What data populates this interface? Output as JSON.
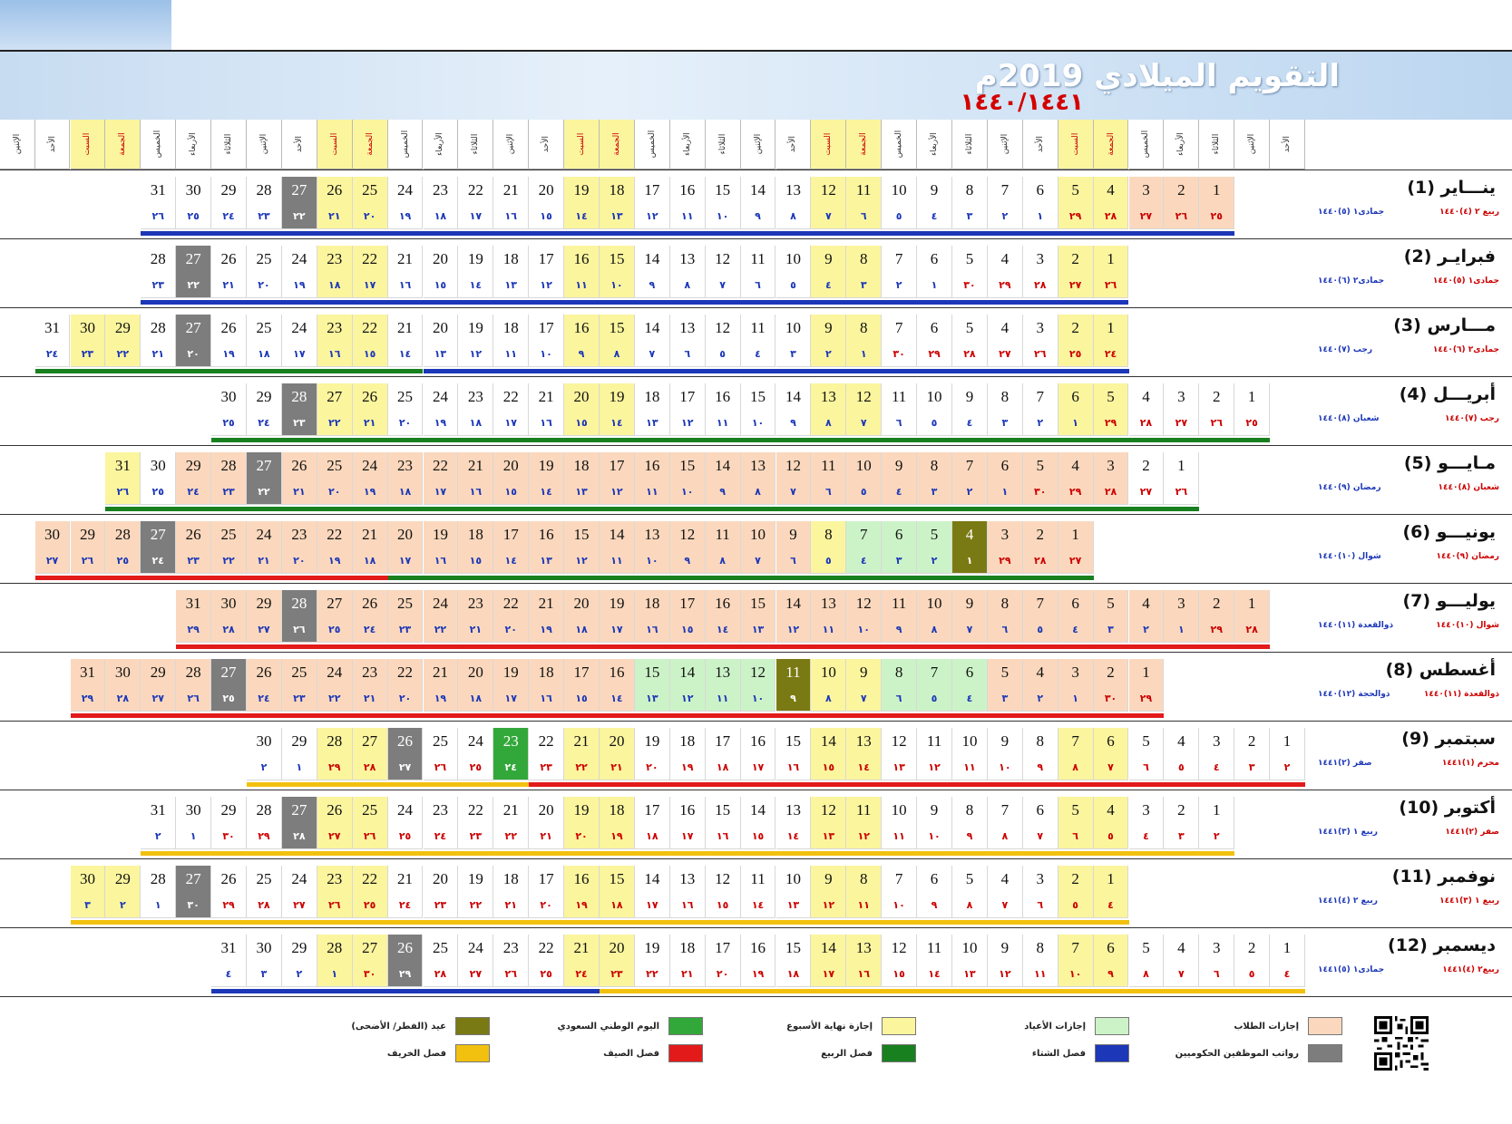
{
  "title": "التقويم الميلادي 2019م",
  "hijri_years": "١٤٤٠/١٤٤١",
  "weekday_headers": [
    "الأحد",
    "الإثنين",
    "الثلاثاء",
    "الأربعاء",
    "الخميس",
    "الجمعة",
    "السبت"
  ],
  "colors": {
    "weekend": "#fbf59e",
    "student": "#fbd8bd",
    "eid_holiday": "#ccf3c8",
    "national_day": "#33a83a",
    "eid_day": "#7a7a14",
    "salary": "#7d7d7d",
    "winter": "#1c37b8",
    "spring": "#18801f",
    "summer": "#e31a1a",
    "autumn": "#f2c10f"
  },
  "months": [
    {
      "label": "ينـــاير (1)",
      "hijri_a": "ربيع ٢ (٤)١٤٤٠",
      "hijri_b": "جمادى١ (٥)١٤٤٠",
      "start": 2,
      "days": 31,
      "h_start": 25,
      "h_len": 29,
      "h_next": 1
    },
    {
      "label": "فبرايـر (2)",
      "hijri_a": "جمادى١ (٥)١٤٤٠",
      "hijri_b": "جمادى٢ (٦)١٤٤٠",
      "start": 5,
      "days": 28,
      "h_start": 26,
      "h_len": 30,
      "h_next": 1
    },
    {
      "label": "مـــارس (3)",
      "hijri_a": "جمادى٢ (٦)١٤٤٠",
      "hijri_b": "رجب (٧)١٤٤٠",
      "start": 5,
      "days": 31,
      "h_start": 24,
      "h_len": 30,
      "h_next": 1
    },
    {
      "label": "أبريـــل (4)",
      "hijri_a": "رجب (٧)١٤٤٠",
      "hijri_b": "شعبان (٨)١٤٤٠",
      "start": 1,
      "days": 30,
      "h_start": 25,
      "h_len": 29,
      "h_next": 1
    },
    {
      "label": "مـايـــو (5)",
      "hijri_a": "شعبان (٨)١٤٤٠",
      "hijri_b": "رمضان (٩)١٤٤٠",
      "start": 3,
      "days": 31,
      "h_start": 26,
      "h_len": 30,
      "h_next": 1
    },
    {
      "label": "يونيـــو (6)",
      "hijri_a": "رمضان (٩)١٤٤٠",
      "hijri_b": "شوال (١٠)١٤٤٠",
      "start": 6,
      "days": 30,
      "h_start": 27,
      "h_len": 29,
      "h_next": 1
    },
    {
      "label": "يوليـــو (7)",
      "hijri_a": "شوال (١٠)١٤٤٠",
      "hijri_b": "ذوالقعدة (١١)١٤٤٠",
      "start": 1,
      "days": 31,
      "h_start": 28,
      "h_len": 29,
      "h_next": 1
    },
    {
      "label": "أغسطس (8)",
      "hijri_a": "ذوالقعدة (١١)١٤٤٠",
      "hijri_b": "ذوالحجة (١٢)١٤٤٠",
      "start": 4,
      "days": 31,
      "h_start": 29,
      "h_len": 30,
      "h_next": 1
    },
    {
      "label": "سبتمبر (9)",
      "hijri_a": "محرم (١)١٤٤١",
      "hijri_b": "صفر (٢)١٤٤١",
      "start": 0,
      "days": 30,
      "h_start": 2,
      "h_len": 29,
      "h_next": 1
    },
    {
      "label": "أكتوبر (10)",
      "hijri_a": "صفر (٢)١٤٤١",
      "hijri_b": "ربيع ١ (٣)١٤٤١",
      "start": 2,
      "days": 31,
      "h_start": 2,
      "h_len": 30,
      "h_next": 1
    },
    {
      "label": "نوفمبر (11)",
      "hijri_a": "ربيع ١ (٣)١٤٤١",
      "hijri_b": "ربيع ٢ (٤)١٤٤١",
      "start": 5,
      "days": 30,
      "h_start": 4,
      "h_len": 30,
      "h_next": 1
    },
    {
      "label": "ديسمبر (12)",
      "hijri_a": "ربيع٢ (٤)١٤٤١",
      "hijri_b": "جمادى١ (٥)١٤٤١",
      "start": 0,
      "days": 31,
      "h_start": 4,
      "h_len": 30,
      "h_next": 1
    }
  ],
  "special_days": {
    "student": [
      [
        1,
        1
      ],
      [
        1,
        2
      ],
      [
        1,
        3
      ],
      [
        5,
        3
      ],
      [
        5,
        4
      ],
      [
        5,
        5
      ],
      [
        5,
        6
      ],
      [
        5,
        7
      ],
      [
        5,
        8
      ],
      [
        5,
        9
      ],
      [
        5,
        10
      ],
      [
        5,
        11
      ],
      [
        5,
        12
      ],
      [
        5,
        13
      ],
      [
        5,
        14
      ],
      [
        5,
        15
      ],
      [
        5,
        16
      ],
      [
        5,
        17
      ],
      [
        5,
        18
      ],
      [
        5,
        19
      ],
      [
        5,
        20
      ],
      [
        5,
        21
      ],
      [
        5,
        22
      ],
      [
        5,
        23
      ],
      [
        5,
        24
      ],
      [
        5,
        25
      ],
      [
        5,
        26
      ],
      [
        5,
        27
      ],
      [
        5,
        28
      ],
      [
        5,
        29
      ],
      [
        6,
        1
      ],
      [
        6,
        2
      ],
      [
        6,
        3
      ],
      [
        6,
        9
      ],
      [
        6,
        10
      ],
      [
        6,
        11
      ],
      [
        6,
        12
      ],
      [
        6,
        13
      ],
      [
        6,
        14
      ],
      [
        6,
        15
      ],
      [
        6,
        16
      ],
      [
        6,
        17
      ],
      [
        6,
        18
      ],
      [
        6,
        19
      ],
      [
        6,
        20
      ],
      [
        6,
        21
      ],
      [
        6,
        22
      ],
      [
        6,
        23
      ],
      [
        6,
        24
      ],
      [
        6,
        25
      ],
      [
        6,
        26
      ],
      [
        6,
        27
      ],
      [
        6,
        28
      ],
      [
        6,
        29
      ],
      [
        6,
        30
      ],
      [
        7,
        1
      ],
      [
        7,
        2
      ],
      [
        7,
        3
      ],
      [
        7,
        4
      ],
      [
        7,
        5
      ],
      [
        7,
        6
      ],
      [
        7,
        7
      ],
      [
        7,
        8
      ],
      [
        7,
        9
      ],
      [
        7,
        10
      ],
      [
        7,
        11
      ],
      [
        7,
        12
      ],
      [
        7,
        13
      ],
      [
        7,
        14
      ],
      [
        7,
        15
      ],
      [
        7,
        16
      ],
      [
        7,
        17
      ],
      [
        7,
        18
      ],
      [
        7,
        19
      ],
      [
        7,
        20
      ],
      [
        7,
        21
      ],
      [
        7,
        22
      ],
      [
        7,
        23
      ],
      [
        7,
        24
      ],
      [
        7,
        25
      ],
      [
        7,
        26
      ],
      [
        7,
        27
      ],
      [
        7,
        28
      ],
      [
        7,
        29
      ],
      [
        7,
        30
      ],
      [
        7,
        31
      ],
      [
        8,
        1
      ],
      [
        8,
        2
      ],
      [
        8,
        3
      ],
      [
        8,
        4
      ],
      [
        8,
        5
      ],
      [
        8,
        16
      ],
      [
        8,
        17
      ],
      [
        8,
        18
      ],
      [
        8,
        19
      ],
      [
        8,
        20
      ],
      [
        8,
        21
      ],
      [
        8,
        22
      ],
      [
        8,
        23
      ],
      [
        8,
        24
      ],
      [
        8,
        25
      ],
      [
        8,
        26
      ],
      [
        8,
        27
      ],
      [
        8,
        28
      ],
      [
        8,
        29
      ],
      [
        8,
        30
      ],
      [
        8,
        31
      ]
    ],
    "eid_holiday": [
      [
        6,
        5
      ],
      [
        6,
        6
      ],
      [
        6,
        7
      ],
      [
        8,
        6
      ],
      [
        8,
        7
      ],
      [
        8,
        8
      ],
      [
        8,
        12
      ],
      [
        8,
        13
      ],
      [
        8,
        14
      ],
      [
        8,
        15
      ]
    ],
    "eid_day": [
      [
        6,
        4
      ],
      [
        8,
        11
      ]
    ],
    "national_day": [
      [
        9,
        23
      ]
    ],
    "salary": [
      [
        1,
        27
      ],
      [
        2,
        27
      ],
      [
        3,
        27
      ],
      [
        4,
        28
      ],
      [
        5,
        27
      ],
      [
        6,
        27
      ],
      [
        7,
        28
      ],
      [
        8,
        27
      ],
      [
        9,
        26
      ],
      [
        10,
        27
      ],
      [
        11,
        27
      ],
      [
        12,
        26
      ]
    ]
  },
  "season_bars": [
    {
      "month": 1,
      "segments": [
        {
          "from": 1,
          "to": 31,
          "season": "winter"
        }
      ]
    },
    {
      "month": 2,
      "segments": [
        {
          "from": 1,
          "to": 28,
          "season": "winter"
        }
      ]
    },
    {
      "month": 3,
      "segments": [
        {
          "from": 1,
          "to": 20,
          "season": "winter"
        },
        {
          "from": 21,
          "to": 31,
          "season": "spring"
        }
      ]
    },
    {
      "month": 4,
      "segments": [
        {
          "from": 1,
          "to": 30,
          "season": "spring"
        }
      ]
    },
    {
      "month": 5,
      "segments": [
        {
          "from": 1,
          "to": 31,
          "season": "spring"
        }
      ]
    },
    {
      "month": 6,
      "segments": [
        {
          "from": 1,
          "to": 20,
          "season": "spring"
        },
        {
          "from": 21,
          "to": 30,
          "season": "summer"
        }
      ]
    },
    {
      "month": 7,
      "segments": [
        {
          "from": 1,
          "to": 31,
          "season": "summer"
        }
      ]
    },
    {
      "month": 8,
      "segments": [
        {
          "from": 1,
          "to": 31,
          "season": "summer"
        }
      ]
    },
    {
      "month": 9,
      "segments": [
        {
          "from": 1,
          "to": 22,
          "season": "summer"
        },
        {
          "from": 23,
          "to": 30,
          "season": "autumn"
        }
      ]
    },
    {
      "month": 10,
      "segments": [
        {
          "from": 1,
          "to": 31,
          "season": "autumn"
        }
      ]
    },
    {
      "month": 11,
      "segments": [
        {
          "from": 1,
          "to": 30,
          "season": "autumn"
        }
      ]
    },
    {
      "month": 12,
      "segments": [
        {
          "from": 1,
          "to": 20,
          "season": "autumn"
        },
        {
          "from": 21,
          "to": 31,
          "season": "winter"
        }
      ]
    }
  ],
  "legend": [
    {
      "label": "إجازات الطلاب",
      "color_key": "student"
    },
    {
      "label": "إجازات الأعياد",
      "color_key": "eid_holiday"
    },
    {
      "label": "إجازة نهاية الأسبوع",
      "color_key": "weekend"
    },
    {
      "label": "اليوم الوطني السعودي",
      "color_key": "national_day"
    },
    {
      "label": "عيد (الفطر/ الأضحى)",
      "color_key": "eid_day"
    },
    {
      "label": "رواتب الموظفين الحكوميين",
      "color_key": "salary"
    },
    {
      "label": "فصل الشتاء",
      "color_key": "winter"
    },
    {
      "label": "فصل الربيع",
      "color_key": "spring"
    },
    {
      "label": "فصل الصيف",
      "color_key": "summer"
    },
    {
      "label": "فصل الخريف",
      "color_key": "autumn"
    }
  ]
}
